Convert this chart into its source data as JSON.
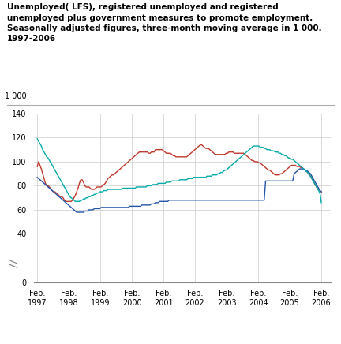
{
  "title_line1": "Unemployed( LFS), registered unemployed and registered",
  "title_line2": "unemployed plus government measures to promote employment.",
  "title_line3": "Seasonally adjusted figures, three-month moving average in 1 000.",
  "title_line4": "1997-2006",
  "color_lfs": "#c0392b",
  "color_reg": "#2255aa",
  "color_gov": "#00aaaa",
  "xtick_labels": [
    "Feb.\n1997",
    "Feb.\n1998",
    "Feb.\n1999",
    "Feb.\n2000",
    "Feb.\n2001",
    "Feb.\n2002",
    "Feb.\n2003",
    "Feb.\n2004",
    "Feb.\n2005",
    "Feb.\n2006"
  ],
  "lfs_data": [
    96,
    100,
    97,
    94,
    90,
    86,
    82,
    80,
    80,
    79,
    77,
    76,
    75,
    75,
    74,
    73,
    72,
    71,
    71,
    70,
    68,
    67,
    67,
    67,
    67,
    67,
    68,
    70,
    72,
    75,
    78,
    82,
    85,
    85,
    83,
    80,
    79,
    79,
    79,
    78,
    77,
    77,
    77,
    78,
    79,
    79,
    79,
    79,
    80,
    81,
    82,
    84,
    86,
    87,
    88,
    89,
    89,
    90,
    91,
    92,
    93,
    94,
    95,
    96,
    97,
    98,
    99,
    100,
    101,
    102,
    103,
    104,
    105,
    106,
    107,
    108,
    108,
    108,
    108,
    108,
    108,
    108,
    107,
    107,
    108,
    108,
    108,
    110,
    110,
    110,
    110,
    110,
    110,
    109,
    108,
    107,
    107,
    107,
    107,
    106,
    105,
    105,
    104,
    104,
    104,
    104,
    104,
    104,
    104,
    104,
    104,
    105,
    106,
    107,
    108,
    109,
    110,
    111,
    112,
    113,
    114,
    114,
    113,
    112,
    111,
    111,
    111,
    110,
    109,
    108,
    107,
    106,
    106,
    106,
    106,
    106,
    106,
    106,
    106,
    107,
    107,
    108,
    108,
    108,
    108,
    107,
    107,
    107,
    107,
    107,
    107,
    107,
    107,
    106,
    105,
    104,
    103,
    102,
    101,
    101,
    100,
    100,
    100,
    99,
    99,
    98,
    97,
    96,
    95,
    94,
    93,
    93,
    92,
    91,
    90,
    89,
    89,
    89,
    89,
    90,
    90,
    91,
    92,
    93,
    94,
    95,
    96,
    97,
    97,
    97,
    97,
    96,
    96,
    96,
    95,
    95,
    94,
    93,
    92,
    91,
    90,
    88,
    86,
    84,
    82,
    80,
    78,
    77,
    76,
    75
  ],
  "reg_data": [
    87,
    86,
    85,
    84,
    83,
    82,
    81,
    80,
    79,
    78,
    77,
    76,
    75,
    74,
    73,
    72,
    71,
    70,
    69,
    68,
    67,
    66,
    65,
    64,
    63,
    62,
    61,
    60,
    59,
    58,
    58,
    58,
    58,
    58,
    58,
    59,
    59,
    59,
    60,
    60,
    60,
    60,
    61,
    61,
    61,
    61,
    61,
    62,
    62,
    62,
    62,
    62,
    62,
    62,
    62,
    62,
    62,
    62,
    62,
    62,
    62,
    62,
    62,
    62,
    62,
    62,
    62,
    62,
    63,
    63,
    63,
    63,
    63,
    63,
    63,
    63,
    63,
    64,
    64,
    64,
    64,
    64,
    64,
    64,
    65,
    65,
    65,
    66,
    66,
    66,
    67,
    67,
    67,
    67,
    67,
    67,
    67,
    68,
    68,
    68,
    68,
    68,
    68,
    68,
    68,
    68,
    68,
    68,
    68,
    68,
    68,
    68,
    68,
    68,
    68,
    68,
    68,
    68,
    68,
    68,
    68,
    68,
    68,
    68,
    68,
    68,
    68,
    68,
    68,
    68,
    68,
    68,
    68,
    68,
    68,
    68,
    68,
    68,
    68,
    68,
    68,
    68,
    68,
    68,
    68,
    68,
    68,
    68,
    68,
    68,
    68,
    68,
    68,
    68,
    68,
    68,
    68,
    68,
    68,
    68,
    68,
    68,
    68,
    68,
    68,
    68,
    68,
    68,
    84,
    84,
    84,
    84,
    84,
    84,
    84,
    84,
    84,
    84,
    84,
    84,
    84,
    84,
    84,
    84,
    84,
    84,
    84,
    84,
    84,
    90,
    91,
    92,
    93,
    94,
    94,
    94,
    94,
    93,
    93,
    92,
    91,
    90,
    88,
    86,
    84,
    82,
    80,
    78,
    76,
    75
  ],
  "gov_data": [
    119,
    117,
    115,
    113,
    110,
    108,
    106,
    104,
    103,
    101,
    99,
    97,
    95,
    93,
    91,
    89,
    87,
    85,
    83,
    81,
    79,
    77,
    75,
    73,
    71,
    70,
    69,
    68,
    67,
    67,
    67,
    67,
    68,
    68,
    69,
    69,
    70,
    70,
    71,
    71,
    72,
    72,
    73,
    73,
    74,
    74,
    75,
    75,
    75,
    76,
    76,
    76,
    77,
    77,
    77,
    77,
    77,
    77,
    77,
    77,
    77,
    77,
    77,
    78,
    78,
    78,
    78,
    78,
    78,
    78,
    78,
    78,
    78,
    79,
    79,
    79,
    79,
    79,
    79,
    79,
    79,
    80,
    80,
    80,
    80,
    81,
    81,
    81,
    81,
    82,
    82,
    82,
    82,
    82,
    82,
    83,
    83,
    83,
    83,
    84,
    84,
    84,
    84,
    84,
    84,
    85,
    85,
    85,
    85,
    85,
    85,
    86,
    86,
    86,
    86,
    87,
    87,
    87,
    87,
    87,
    87,
    87,
    87,
    87,
    87,
    88,
    88,
    88,
    88,
    89,
    89,
    89,
    89,
    90,
    90,
    91,
    91,
    92,
    93,
    93,
    94,
    95,
    96,
    97,
    98,
    99,
    100,
    101,
    102,
    103,
    104,
    105,
    106,
    107,
    108,
    109,
    110,
    111,
    112,
    113,
    113,
    113,
    113,
    113,
    112,
    112,
    112,
    111,
    111,
    110,
    110,
    110,
    109,
    109,
    109,
    108,
    108,
    108,
    107,
    107,
    106,
    106,
    105,
    105,
    104,
    103,
    103,
    102,
    102,
    101,
    100,
    99,
    98,
    97,
    96,
    95,
    94,
    93,
    92,
    91,
    89,
    88,
    86,
    84,
    82,
    80,
    78,
    76,
    74,
    66
  ]
}
